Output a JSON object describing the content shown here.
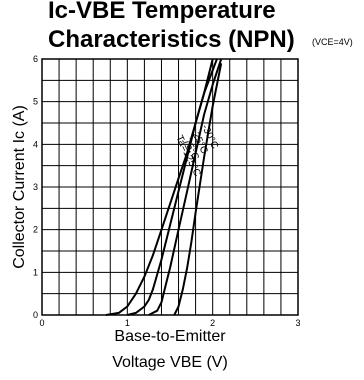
{
  "chart_data": {
    "type": "line",
    "title_line1": "Ic-VBE Temperature",
    "title_line2": "Characteristics (NPN)",
    "condition": "(VCE=4V)",
    "xlabel_line1": "Base-to-Emitter",
    "xlabel_line2": "Voltage VBE (V)",
    "ylabel": "Collector Current Ic (A)",
    "xlim": [
      0,
      3
    ],
    "ylim": [
      0,
      6
    ],
    "x_ticks": [
      "0",
      "1",
      "2",
      "3"
    ],
    "y_ticks": [
      "0",
      "1",
      "2",
      "3",
      "4",
      "5",
      "6"
    ],
    "grid": true,
    "series": [
      {
        "name": "Ta=125°C",
        "x": [
          0.75,
          0.9,
          1.0,
          1.1,
          1.2,
          1.3,
          1.4,
          1.5,
          1.6,
          1.7,
          1.8,
          1.9,
          2.0
        ],
        "y": [
          0.0,
          0.05,
          0.2,
          0.5,
          0.9,
          1.4,
          2.0,
          2.6,
          3.2,
          3.8,
          4.5,
          5.2,
          6.0
        ]
      },
      {
        "name": "75°C",
        "x": [
          1.0,
          1.1,
          1.2,
          1.25,
          1.3,
          1.4,
          1.5,
          1.6,
          1.7,
          1.8,
          1.9,
          2.05
        ],
        "y": [
          0.0,
          0.05,
          0.2,
          0.35,
          0.6,
          1.3,
          2.1,
          2.9,
          3.7,
          4.5,
          5.2,
          6.0
        ]
      },
      {
        "name": "25°C",
        "x": [
          1.25,
          1.35,
          1.4,
          1.45,
          1.5,
          1.6,
          1.7,
          1.8,
          1.9,
          2.0,
          2.1
        ],
        "y": [
          0.0,
          0.1,
          0.3,
          0.7,
          1.1,
          2.0,
          2.9,
          3.8,
          4.7,
          5.4,
          6.0
        ]
      },
      {
        "name": "-30°C",
        "x": [
          1.55,
          1.6,
          1.65,
          1.7,
          1.75,
          1.8,
          1.9,
          2.0,
          2.1
        ],
        "y": [
          0.0,
          0.2,
          0.6,
          1.1,
          1.7,
          2.4,
          3.7,
          4.9,
          5.9
        ]
      }
    ],
    "series_labels": [
      "Ta=125°C",
      "75°C",
      "25°C",
      "-30°C"
    ]
  }
}
